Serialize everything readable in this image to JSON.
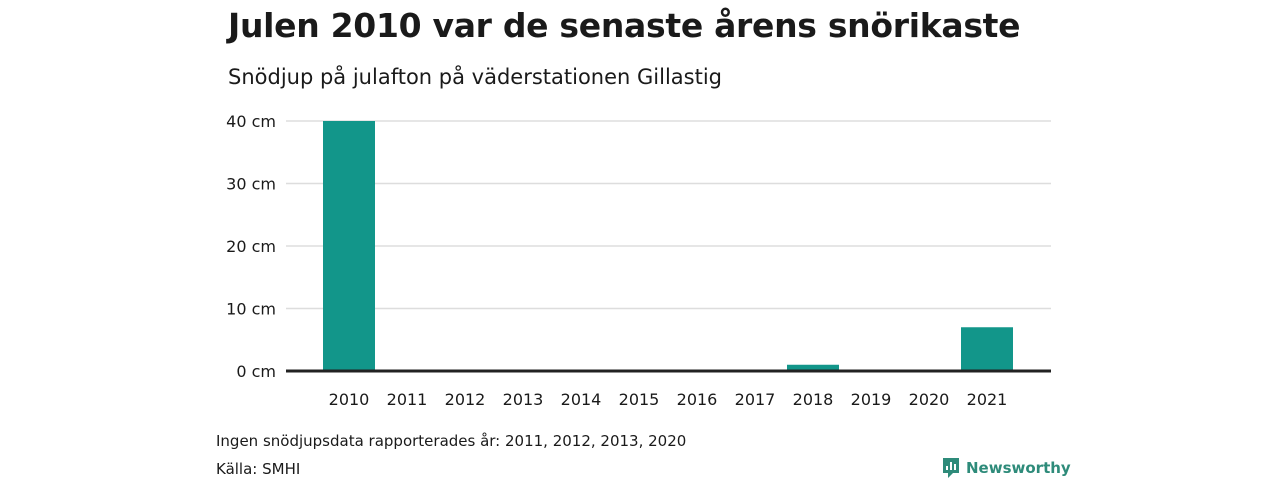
{
  "header": {
    "title": "Julen 2010 var de senaste årens snörikaste",
    "subtitle": "Snödjup på julafton på väderstationen Gillastig"
  },
  "chart_data": {
    "type": "bar",
    "categories": [
      "2010",
      "2011",
      "2012",
      "2013",
      "2014",
      "2015",
      "2016",
      "2017",
      "2018",
      "2019",
      "2020",
      "2021"
    ],
    "values": [
      40,
      null,
      null,
      null,
      0,
      0,
      0,
      0,
      1,
      0,
      null,
      7
    ],
    "y_ticks": [
      0,
      10,
      20,
      30,
      40
    ],
    "y_unit": "cm",
    "ylim": [
      0,
      40
    ],
    "grid": true,
    "bar_color": "#12968a"
  },
  "footer": {
    "note": "Ingen snödjupsdata rapporterades år: 2011, 2012, 2013, 2020",
    "source": "Källa: SMHI",
    "brand": "Newsworthy",
    "brand_icon": "newsworthy-logo-icon",
    "brand_color": "#2e8b7a"
  }
}
